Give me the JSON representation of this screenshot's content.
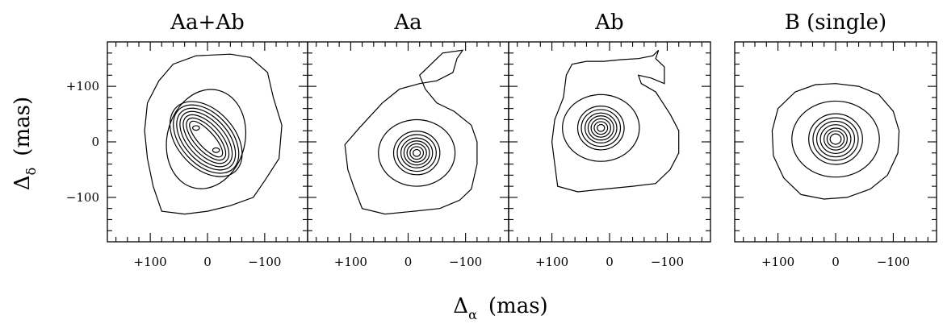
{
  "chart_data": {
    "type": "contour",
    "panels": [
      {
        "title": "Aa+Ab",
        "x_ticks": [
          "+100",
          "0",
          "−100"
        ],
        "y_ticks": [
          "+100",
          "0",
          "−100"
        ],
        "peaks": [
          {
            "x": 20,
            "y": 25
          },
          {
            "x": -15,
            "y": -15
          }
        ],
        "outer_contour": [
          [
            -40,
            158
          ],
          [
            -75,
            152
          ],
          [
            -105,
            125
          ],
          [
            -115,
            80
          ],
          [
            -130,
            30
          ],
          [
            -125,
            -30
          ],
          [
            -100,
            -70
          ],
          [
            -80,
            -100
          ],
          [
            -40,
            -115
          ],
          [
            0,
            -125
          ],
          [
            40,
            -130
          ],
          [
            80,
            -125
          ],
          [
            95,
            -80
          ],
          [
            105,
            -30
          ],
          [
            110,
            20
          ],
          [
            105,
            70
          ],
          [
            85,
            110
          ],
          [
            60,
            140
          ],
          [
            20,
            155
          ]
        ]
      },
      {
        "title": "Aa",
        "x_ticks": [
          "+100",
          "0",
          "−100"
        ],
        "y_ticks": [],
        "peaks": [
          {
            "x": -15,
            "y": -20
          }
        ],
        "outer_contour": [
          [
            -95,
            165
          ],
          [
            -85,
            150
          ],
          [
            -78,
            125
          ],
          [
            -50,
            110
          ],
          [
            -20,
            105
          ],
          [
            15,
            95
          ],
          [
            45,
            70
          ],
          [
            85,
            25
          ],
          [
            110,
            -5
          ],
          [
            105,
            -50
          ],
          [
            95,
            -80
          ],
          [
            80,
            -120
          ],
          [
            40,
            -130
          ],
          [
            -10,
            -125
          ],
          [
            -55,
            -120
          ],
          [
            -90,
            -105
          ],
          [
            -110,
            -85
          ],
          [
            -120,
            -40
          ],
          [
            -120,
            0
          ],
          [
            -110,
            30
          ],
          [
            -80,
            55
          ],
          [
            -50,
            70
          ],
          [
            -30,
            95
          ],
          [
            -20,
            120
          ],
          [
            -40,
            140
          ],
          [
            -60,
            160
          ]
        ]
      },
      {
        "title": "Ab",
        "x_ticks": [
          "+100",
          "0",
          "−100"
        ],
        "y_ticks": [],
        "peaks": [
          {
            "x": 15,
            "y": 25
          }
        ],
        "outer_contour": [
          [
            -85,
            165
          ],
          [
            -75,
            155
          ],
          [
            -50,
            150
          ],
          [
            -20,
            148
          ],
          [
            10,
            145
          ],
          [
            40,
            145
          ],
          [
            65,
            140
          ],
          [
            75,
            120
          ],
          [
            80,
            80
          ],
          [
            95,
            40
          ],
          [
            100,
            0
          ],
          [
            95,
            -40
          ],
          [
            90,
            -80
          ],
          [
            55,
            -90
          ],
          [
            10,
            -85
          ],
          [
            -40,
            -80
          ],
          [
            -80,
            -75
          ],
          [
            -105,
            -50
          ],
          [
            -120,
            -20
          ],
          [
            -120,
            20
          ],
          [
            -105,
            50
          ],
          [
            -80,
            90
          ],
          [
            -55,
            105
          ],
          [
            -50,
            120
          ],
          [
            -72,
            115
          ],
          [
            -95,
            105
          ],
          [
            -95,
            135
          ],
          [
            -80,
            150
          ]
        ]
      },
      {
        "title": "B (single)",
        "x_ticks": [
          "+100",
          "0",
          "−100"
        ],
        "y_ticks": [],
        "peaks": [
          {
            "x": 0,
            "y": 5
          }
        ],
        "outer_contour": [
          [
            0,
            105
          ],
          [
            -40,
            100
          ],
          [
            -75,
            85
          ],
          [
            -100,
            55
          ],
          [
            -110,
            20
          ],
          [
            -108,
            -20
          ],
          [
            -90,
            -60
          ],
          [
            -60,
            -85
          ],
          [
            -20,
            -100
          ],
          [
            20,
            -103
          ],
          [
            60,
            -95
          ],
          [
            90,
            -65
          ],
          [
            108,
            -25
          ],
          [
            110,
            20
          ],
          [
            100,
            60
          ],
          [
            70,
            90
          ],
          [
            35,
            103
          ]
        ]
      }
    ],
    "xlim": [
      175,
      -175
    ],
    "ylim": [
      -180,
      180
    ],
    "xlabel": "Δ",
    "xlabel_sub": "α",
    "xlabel_unit": "(mas)",
    "ylabel": "Δ",
    "ylabel_sub": "δ",
    "ylabel_unit": "(mas)",
    "grid": false
  }
}
